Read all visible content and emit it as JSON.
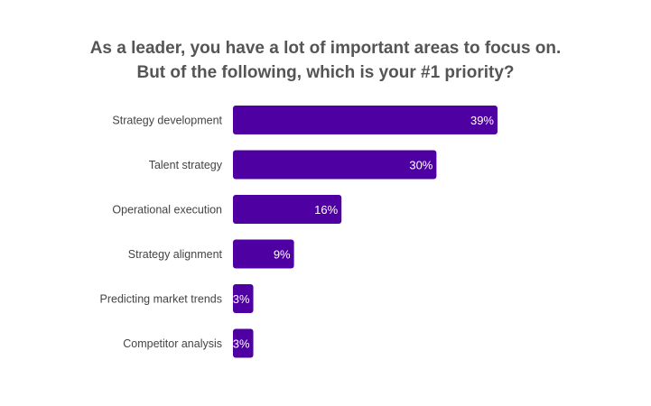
{
  "chart_data": {
    "type": "bar",
    "orientation": "horizontal",
    "title_line1": "As a leader, you have a lot of important areas to focus on.",
    "title_line2": "But of the following, which is your #1 priority?",
    "categories": [
      "Strategy development",
      "Talent strategy",
      "Operational execution",
      "Strategy alignment",
      "Predicting market trends",
      "Competitor analysis"
    ],
    "values": [
      39,
      30,
      16,
      9,
      3,
      3
    ],
    "value_labels": [
      "39%",
      "30%",
      "16%",
      "9%",
      "3%",
      "3%"
    ],
    "xlim": [
      0,
      39
    ],
    "grid": false,
    "legend": "none",
    "bar_color": "#4f00a3"
  }
}
